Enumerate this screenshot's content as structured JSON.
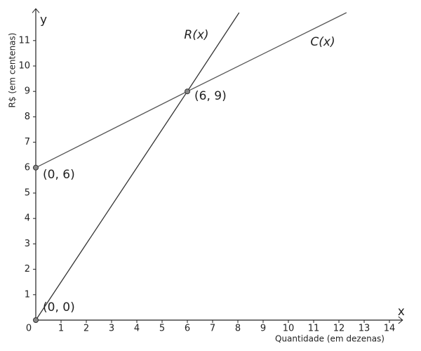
{
  "chart_data": {
    "type": "line",
    "x_label": "Quantidade (em dezenas)",
    "y_label": "R$ (em centenas)",
    "x_axis_name": "x",
    "y_axis_name": "y",
    "xlim": [
      0,
      14.3
    ],
    "ylim": [
      0,
      12.2
    ],
    "xticks": [
      0,
      1,
      2,
      3,
      4,
      5,
      6,
      7,
      8,
      9,
      10,
      11,
      12,
      13,
      14
    ],
    "yticks": [
      1,
      2,
      3,
      4,
      5,
      6,
      7,
      8,
      9,
      10,
      11
    ],
    "series": [
      {
        "name": "R(x)",
        "color": "#333333",
        "x": [
          0,
          6,
          8.05
        ],
        "values": [
          0,
          9,
          12.1
        ]
      },
      {
        "name": "C(x)",
        "color": "#555555",
        "x": [
          0,
          6,
          12.3
        ],
        "values": [
          6,
          9,
          12.1
        ]
      }
    ],
    "points": [
      {
        "label": "(0, 0)",
        "x": 0,
        "y": 0
      },
      {
        "label": "(0, 6)",
        "x": 0,
        "y": 6
      },
      {
        "label": "(6, 9)",
        "x": 6,
        "y": 9
      }
    ],
    "point_color": "#888888"
  }
}
